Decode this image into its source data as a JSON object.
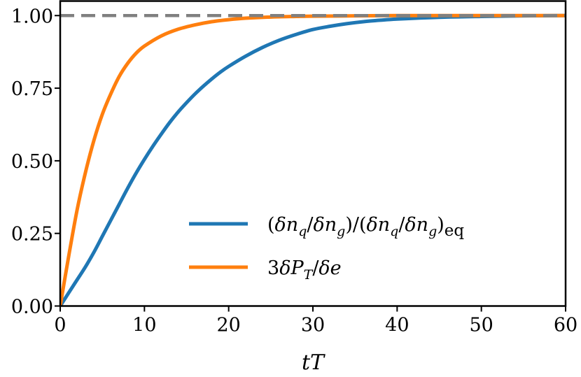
{
  "chart_data": {
    "type": "line",
    "xlabel": "tT",
    "ylabel": "",
    "xlim": [
      0,
      60
    ],
    "ylim": [
      0,
      1.05
    ],
    "xticks": [
      "0",
      "10",
      "20",
      "30",
      "40",
      "50",
      "60"
    ],
    "yticks": [
      "0.00",
      "0.25",
      "0.50",
      "0.75",
      "1.00"
    ],
    "grid": false,
    "legend_position": "lower-right",
    "reference_line": {
      "y": 1.0,
      "style": "dashed",
      "color": "#808080"
    },
    "series": [
      {
        "name": "(δn_q/δn_g)/(δn_q/δn_g)_eq",
        "color": "#1f77b4",
        "x": [
          0,
          1,
          2,
          3,
          4,
          5,
          6,
          7,
          8,
          9,
          10,
          11,
          12,
          13,
          14,
          15,
          16,
          17,
          18,
          19,
          20,
          22,
          24,
          26,
          28,
          30,
          32,
          34,
          36,
          38,
          40,
          45,
          50,
          55,
          60
        ],
        "y": [
          0,
          0.045,
          0.09,
          0.135,
          0.185,
          0.24,
          0.295,
          0.35,
          0.405,
          0.457,
          0.505,
          0.55,
          0.592,
          0.632,
          0.668,
          0.7,
          0.73,
          0.757,
          0.782,
          0.805,
          0.825,
          0.86,
          0.89,
          0.915,
          0.935,
          0.952,
          0.963,
          0.972,
          0.979,
          0.984,
          0.988,
          0.994,
          0.997,
          0.999,
          1.0
        ]
      },
      {
        "name": "3δP_T/δe",
        "color": "#ff7f0e",
        "x": [
          0,
          1,
          2,
          3,
          4,
          5,
          6,
          7,
          8,
          9,
          10,
          12,
          14,
          16,
          18,
          20,
          22,
          25,
          28,
          30,
          35,
          40,
          50,
          60
        ],
        "y": [
          0,
          0.17,
          0.33,
          0.46,
          0.57,
          0.66,
          0.73,
          0.79,
          0.835,
          0.87,
          0.895,
          0.93,
          0.953,
          0.968,
          0.979,
          0.986,
          0.991,
          0.995,
          0.997,
          0.998,
          0.999,
          1.0,
          1.0,
          1.0
        ]
      }
    ],
    "legend": [
      {
        "label_html": "(δn<tspan font-style='italic'></tspan>",
        "label": "(δn_q/δn_g)/(δn_q/δn_g)eq"
      },
      {
        "label": "3δP_T/δe"
      }
    ]
  }
}
